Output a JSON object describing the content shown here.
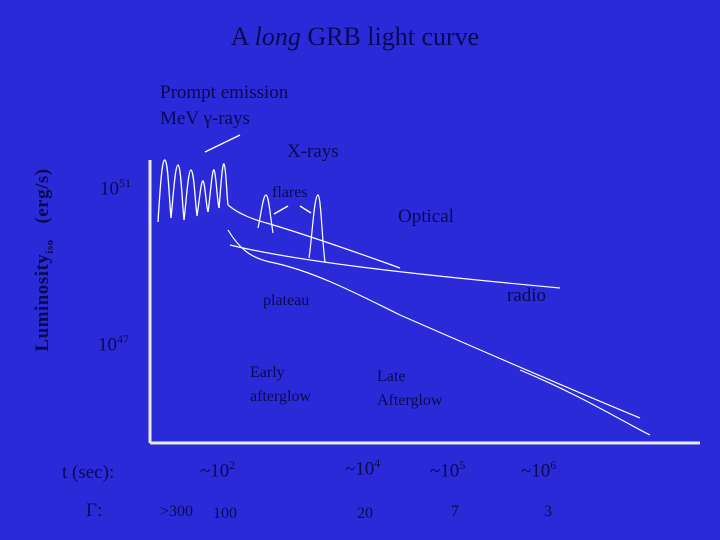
{
  "title": {
    "prefix": "A ",
    "italic": "long",
    "suffix": " GRB light curve"
  },
  "ylabel": {
    "main": "Luminosity",
    "sub": "iso",
    "unit": "(erg/s)"
  },
  "y_ticks": [
    {
      "base": "10",
      "exp": "51"
    },
    {
      "base": "10",
      "exp": "47"
    }
  ],
  "labels": {
    "prompt_line1": "Prompt emission",
    "prompt_line2_a": "MeV ",
    "prompt_line2_greek": "γ",
    "prompt_line2_b": "-rays",
    "xrays": "X-rays",
    "flares": "flares",
    "optical": "Optical",
    "plateau": "plateau",
    "radio": "radio",
    "early_afterglow_1": "Early",
    "early_afterglow_2": "afterglow",
    "late_afterglow_1": "Late",
    "late_afterglow_2": "Afterglow"
  },
  "x_axis": {
    "label": "t (sec):",
    "ticks": [
      {
        "text": "~10",
        "exp": "2"
      },
      {
        "text": "~10",
        "exp": "4"
      },
      {
        "text": "~10",
        "exp": "5"
      },
      {
        "text": "~10",
        "exp": "6"
      }
    ]
  },
  "gamma_row": {
    "label_symbol": "Γ",
    "label_colon": ":",
    "values": [
      ">300",
      "100",
      "20",
      "7",
      "3"
    ]
  },
  "colors": {
    "background": "#2a2ad8",
    "text": "#0a0a50",
    "curves": "#ffffff",
    "axes": "#e8e8e8"
  }
}
